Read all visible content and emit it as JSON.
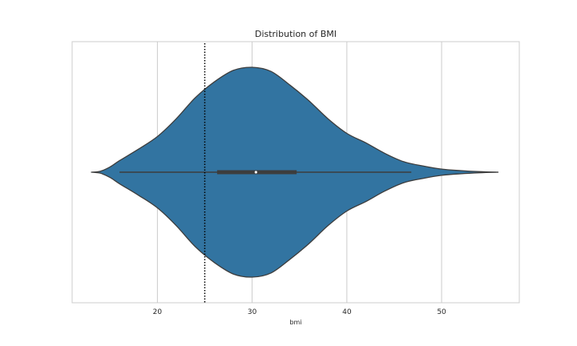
{
  "chart_data": {
    "type": "violin",
    "title": "Distribution of BMI",
    "xlabel": "bmi",
    "ylabel": "",
    "xlim": [
      11,
      58.2
    ],
    "xticks": [
      20,
      30,
      40,
      50
    ],
    "grid": true,
    "fill_color": "#3274a1",
    "edge_color": "#3d3d3d",
    "reference_line": {
      "x": 25,
      "style": "dotted",
      "color": "#000000"
    },
    "density_profile": {
      "x": [
        13.0,
        14.0,
        15.0,
        16.0,
        18.0,
        20.0,
        22.0,
        24.0,
        26.0,
        28.0,
        30.0,
        32.0,
        34.0,
        36.0,
        38.0,
        40.0,
        42.0,
        44.0,
        46.0,
        48.0,
        50.0,
        52.0,
        54.0,
        56.0
      ],
      "half_width_fraction": [
        0.0,
        0.01,
        0.05,
        0.11,
        0.22,
        0.34,
        0.51,
        0.71,
        0.86,
        0.97,
        1.0,
        0.96,
        0.83,
        0.68,
        0.51,
        0.37,
        0.28,
        0.18,
        0.1,
        0.06,
        0.03,
        0.015,
        0.005,
        0.0
      ]
    },
    "box": {
      "whisker_low": 16.0,
      "q1": 26.3,
      "median": 30.4,
      "q3": 34.7,
      "whisker_high": 46.8
    }
  }
}
